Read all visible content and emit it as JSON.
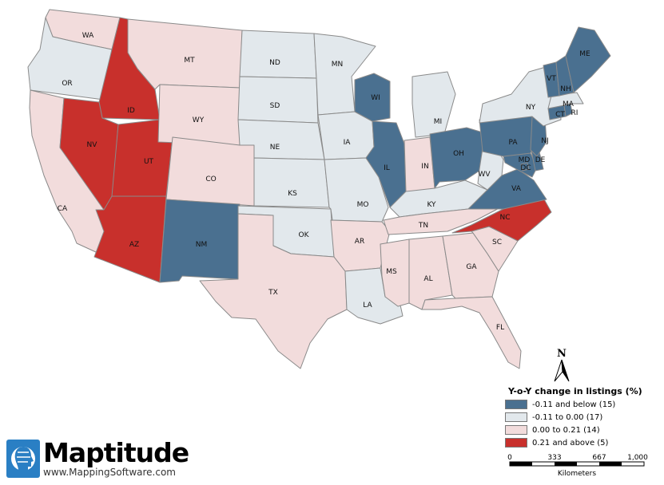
{
  "legend": {
    "title": "Y-o-Y change in listings (%)",
    "classes": [
      {
        "label": "-0.11 and below (15)",
        "color": "#4a7090"
      },
      {
        "label": "-0.11 to 0.00 (17)",
        "color": "#e2e8ec"
      },
      {
        "label": "0.00 to 0.21 (14)",
        "color": "#f2dcdc"
      },
      {
        "label": "0.21 and above (5)",
        "color": "#c8302c"
      }
    ]
  },
  "scale": {
    "ticks": [
      "0",
      "333",
      "667",
      "1,000"
    ],
    "unit": "Kilometers"
  },
  "north_arrow": {
    "letter": "N"
  },
  "logo": {
    "name": "Maptitude",
    "url": "www.MappingSoftware.com",
    "icon": "globe-head-icon"
  },
  "states": [
    {
      "abbr": "WA",
      "class": 2
    },
    {
      "abbr": "OR",
      "class": 1
    },
    {
      "abbr": "CA",
      "class": 2
    },
    {
      "abbr": "ID",
      "class": 3
    },
    {
      "abbr": "NV",
      "class": 3
    },
    {
      "abbr": "UT",
      "class": 3
    },
    {
      "abbr": "AZ",
      "class": 3
    },
    {
      "abbr": "MT",
      "class": 2
    },
    {
      "abbr": "WY",
      "class": 2
    },
    {
      "abbr": "CO",
      "class": 2
    },
    {
      "abbr": "NM",
      "class": 0
    },
    {
      "abbr": "ND",
      "class": 1
    },
    {
      "abbr": "SD",
      "class": 1
    },
    {
      "abbr": "NE",
      "class": 1
    },
    {
      "abbr": "KS",
      "class": 1
    },
    {
      "abbr": "OK",
      "class": 1
    },
    {
      "abbr": "TX",
      "class": 2
    },
    {
      "abbr": "MN",
      "class": 1
    },
    {
      "abbr": "IA",
      "class": 1
    },
    {
      "abbr": "MO",
      "class": 1
    },
    {
      "abbr": "AR",
      "class": 2
    },
    {
      "abbr": "LA",
      "class": 1
    },
    {
      "abbr": "WI",
      "class": 0
    },
    {
      "abbr": "IL",
      "class": 0
    },
    {
      "abbr": "MI",
      "class": 1
    },
    {
      "abbr": "IN",
      "class": 2
    },
    {
      "abbr": "OH",
      "class": 0
    },
    {
      "abbr": "KY",
      "class": 1
    },
    {
      "abbr": "TN",
      "class": 2
    },
    {
      "abbr": "MS",
      "class": 2
    },
    {
      "abbr": "AL",
      "class": 2
    },
    {
      "abbr": "GA",
      "class": 2
    },
    {
      "abbr": "FL",
      "class": 2
    },
    {
      "abbr": "SC",
      "class": 2
    },
    {
      "abbr": "NC",
      "class": 3
    },
    {
      "abbr": "VA",
      "class": 0
    },
    {
      "abbr": "WV",
      "class": 1
    },
    {
      "abbr": "MD",
      "class": 0
    },
    {
      "abbr": "DE",
      "class": 0
    },
    {
      "abbr": "DC",
      "class": 0
    },
    {
      "abbr": "PA",
      "class": 0
    },
    {
      "abbr": "NJ",
      "class": 0
    },
    {
      "abbr": "NY",
      "class": 1
    },
    {
      "abbr": "CT",
      "class": 0
    },
    {
      "abbr": "RI",
      "class": 0
    },
    {
      "abbr": "MA",
      "class": 1
    },
    {
      "abbr": "VT",
      "class": 0
    },
    {
      "abbr": "NH",
      "class": 0
    },
    {
      "abbr": "ME",
      "class": 0
    }
  ]
}
